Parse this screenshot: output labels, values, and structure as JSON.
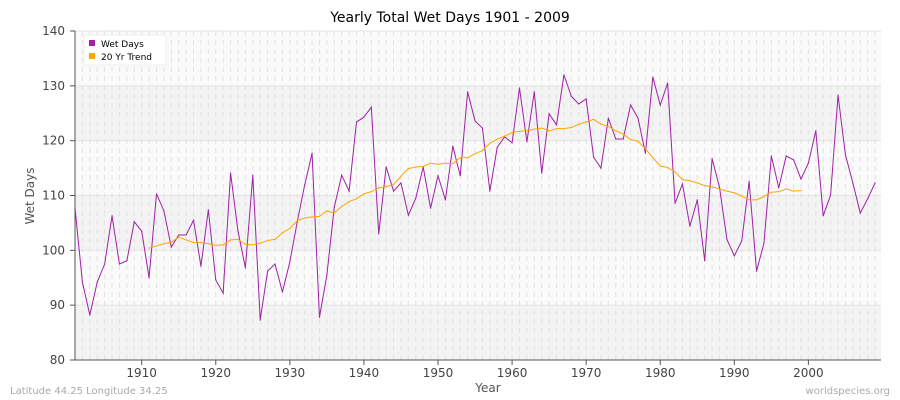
{
  "chart_data": {
    "type": "line",
    "title": "Yearly Total Wet Days 1901 - 2009",
    "xlabel": "Year",
    "ylabel": "Wet Days",
    "xlim": [
      1901,
      2009
    ],
    "ylim": [
      80,
      140
    ],
    "xticks": [
      1910,
      1920,
      1930,
      1940,
      1950,
      1960,
      1970,
      1980,
      1990,
      2000
    ],
    "yticks": [
      80,
      90,
      100,
      110,
      120,
      130,
      140
    ],
    "grid": true,
    "legend": "top-left",
    "series": [
      {
        "name": "Wet Days",
        "color": "#a020a8",
        "start_year": 1901,
        "values": [
          107.7,
          94.2,
          88.2,
          94.2,
          97.5,
          106.3,
          97.5,
          98.1,
          105.2,
          103.5,
          95,
          110.3,
          107.2,
          100.6,
          102.8,
          102.8,
          105.5,
          97.1,
          107.4,
          94.6,
          92.2,
          114.1,
          103.5,
          96.8,
          113.7,
          87.3,
          96.2,
          97.5,
          92.4,
          97.9,
          105.2,
          111.9,
          117.7,
          87.8,
          95.5,
          107.9,
          113.7,
          110.8,
          123.4,
          124.3,
          126.1,
          103,
          115.2,
          110.8,
          112.3,
          106.4,
          109.5,
          115.2,
          107.7,
          113.6,
          109.2,
          119,
          113.6,
          128.9,
          123.6,
          122.3,
          110.8,
          118.8,
          120.7,
          119.6,
          129.6,
          119.8,
          128.9,
          114.1,
          124.9,
          122.9,
          132,
          128.1,
          126.7,
          127.6,
          117,
          115,
          124.1,
          120.3,
          120.3,
          126.5,
          124.1,
          117.7,
          131.6,
          126.5,
          130.5,
          108.6,
          112.1,
          104.4,
          109.2,
          98.1,
          116.7,
          111.5,
          102,
          99,
          101.7,
          112.6,
          96.2,
          101.3,
          117.2,
          111.4,
          117.2,
          116.5,
          113,
          115.9,
          121.8,
          106.3,
          110.1,
          128.3,
          117.4,
          112.3,
          106.8,
          109.4,
          112.3
        ]
      },
      {
        "name": "20 Yr Trend",
        "color": "#ffa500",
        "start_year": 1911,
        "values": [
          100.4,
          100.8,
          101.2,
          101.5,
          102.4,
          101.9,
          101.4,
          101.4,
          101.2,
          100.9,
          101,
          101.9,
          102,
          101.1,
          101,
          101.3,
          101.8,
          102,
          103.2,
          104,
          105.4,
          105.9,
          106.1,
          106.2,
          107.2,
          106.8,
          108,
          108.9,
          109.4,
          110.3,
          110.7,
          111.4,
          111.6,
          112,
          113.5,
          114.9,
          115.2,
          115.3,
          115.9,
          115.7,
          115.9,
          115.8,
          116.9,
          116.9,
          117.6,
          118.2,
          119.5,
          120.3,
          120.8,
          121.5,
          121.7,
          121.8,
          122.1,
          122.3,
          121.8,
          122.2,
          122.2,
          122.4,
          123,
          123.4,
          123.9,
          123,
          122.6,
          121.8,
          121.2,
          120.2,
          119.9,
          118.5,
          116.9,
          115.4,
          115.1,
          114.3,
          112.9,
          112.7,
          112.3,
          111.8,
          111.6,
          111.2,
          110.8,
          110.5,
          109.9,
          109.2,
          109.2,
          109.8,
          110.6,
          110.7,
          111.2,
          110.8,
          110.9
        ]
      }
    ]
  },
  "footer": {
    "left": "Latitude 44.25 Longitude 34.25",
    "right": "worldspecies.org"
  }
}
